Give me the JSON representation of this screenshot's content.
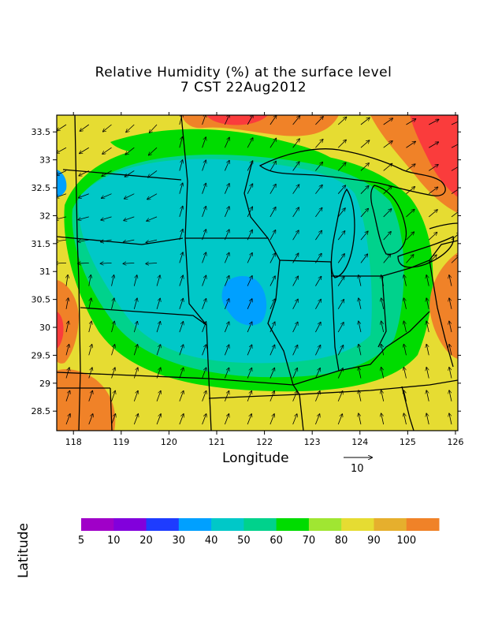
{
  "chart_data": {
    "type": "heatmap",
    "title": "Relative Humidity (%) at the surface level",
    "subtitle": "7 CST 22Aug2012",
    "xlabel": "Longitude",
    "ylabel": "Latitude",
    "xlim": [
      117.65,
      126.05
    ],
    "ylim": [
      28.15,
      33.8
    ],
    "x_ticks": [
      "118",
      "119",
      "120",
      "121",
      "122",
      "123",
      "124",
      "125",
      "126"
    ],
    "y_ticks": [
      "28.5",
      "29",
      "29.5",
      "30",
      "30.5",
      "31",
      "31.5",
      "32",
      "32.5",
      "33",
      "33.5"
    ],
    "vector_reference": {
      "label": "10"
    },
    "colorbar": {
      "labels": [
        "5",
        "10",
        "20",
        "30",
        "40",
        "50",
        "60",
        "70",
        "80",
        "90",
        "100"
      ],
      "colors": [
        "#a000c8",
        "#8200dc",
        "#1e3cff",
        "#00a0ff",
        "#00c8c8",
        "#00d28c",
        "#00dc00",
        "#a0e632",
        "#e6dc32",
        "#e6af2d",
        "#f08228",
        "#fa3c3c",
        "#f00082"
      ]
    },
    "fill_colors": {
      "blue": "#00a0ff",
      "cyan": "#00c8c8",
      "teal": "#00d28c",
      "green": "#00dc00",
      "lightgreen": "#a0e632",
      "yellow": "#e6dc32",
      "orange": "#f08228",
      "red": "#fa3c3c"
    }
  }
}
